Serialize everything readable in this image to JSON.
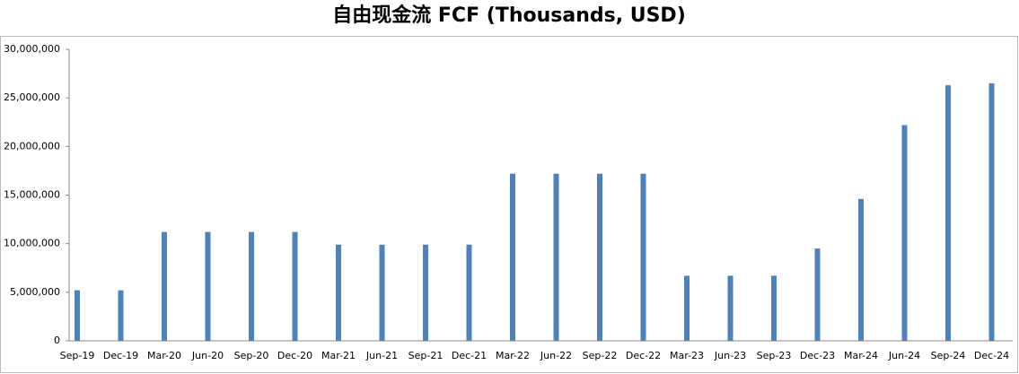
{
  "chart_data": {
    "type": "bar",
    "title": "自由现金流 FCF (Thousands, USD)",
    "categories": [
      "Sep-19",
      "Dec-19",
      "Mar-20",
      "Jun-20",
      "Sep-20",
      "Dec-20",
      "Mar-21",
      "Jun-21",
      "Sep-21",
      "Dec-21",
      "Mar-22",
      "Jun-22",
      "Sep-22",
      "Dec-22",
      "Mar-23",
      "Jun-23",
      "Sep-23",
      "Dec-23",
      "Mar-24",
      "Jun-24",
      "Sep-24",
      "Dec-24"
    ],
    "values": [
      5200000,
      5200000,
      11200000,
      11200000,
      11200000,
      11200000,
      9900000,
      9900000,
      9900000,
      9900000,
      17200000,
      17200000,
      17200000,
      17200000,
      6700000,
      6700000,
      6700000,
      9500000,
      14600000,
      22200000,
      26300000,
      26500000
    ],
    "color": "#4f81bd",
    "ylim": [
      0,
      30000000
    ],
    "yticks": [
      0,
      {
        "value": 5000000,
        "label": "5,000,000"
      },
      {
        "value": 10000000,
        "label": "10,000,000"
      },
      {
        "value": 15000000,
        "label": "15,000,000"
      },
      {
        "value": 20000000,
        "label": "20,000,000"
      },
      {
        "value": 25000000,
        "label": "25,000,000"
      },
      {
        "value": 30000000,
        "label": "30,000,000"
      }
    ],
    "grid": false
  }
}
